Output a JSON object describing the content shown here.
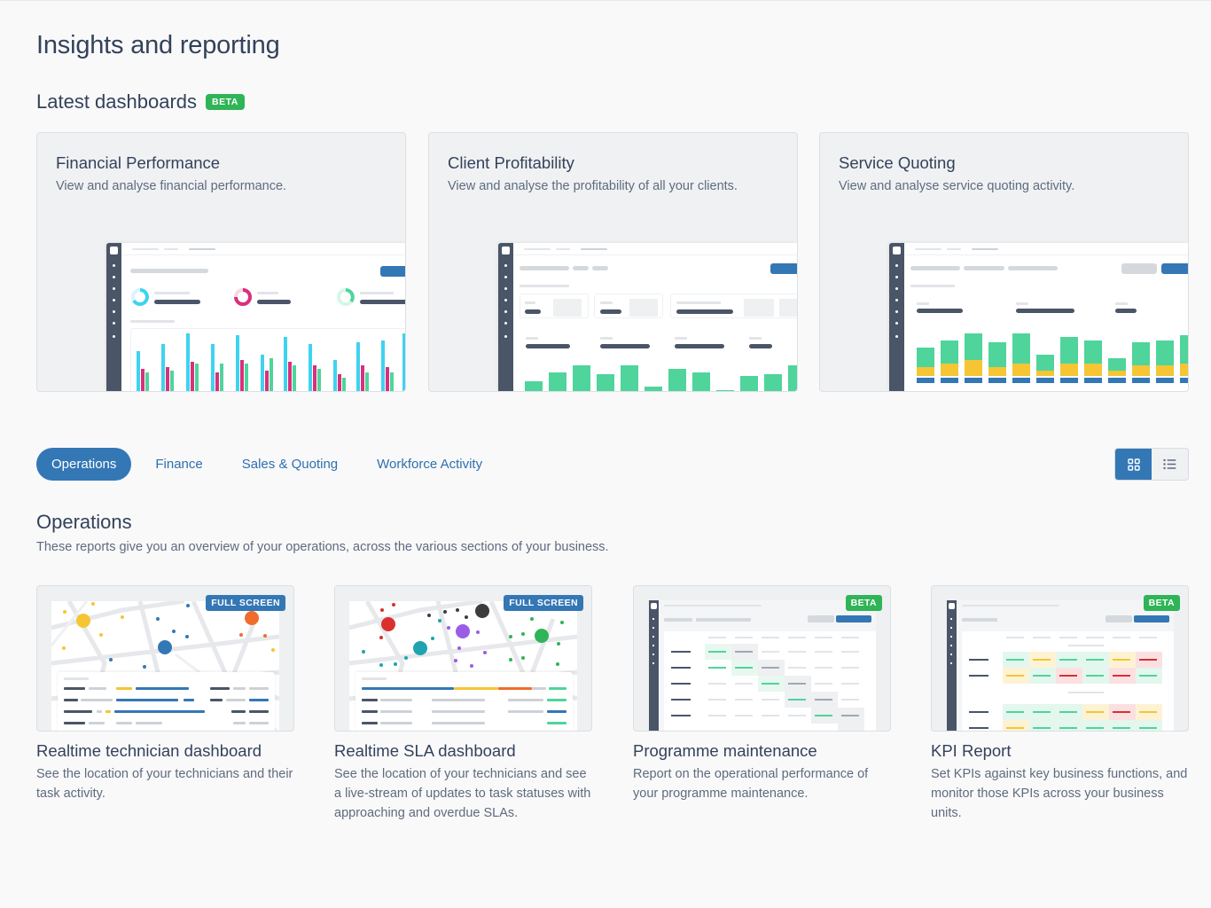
{
  "page": {
    "title": "Insights and reporting"
  },
  "latest": {
    "title": "Latest dashboards",
    "badge": "BETA",
    "cards": [
      {
        "title": "Financial Performance",
        "desc": "View and analyse financial performance."
      },
      {
        "title": "Client Profitability",
        "desc": "View and analyse the profitability of all your clients."
      },
      {
        "title": "Service Quoting",
        "desc": "View and analyse service quoting activity."
      }
    ]
  },
  "tabs": [
    {
      "label": "Operations",
      "active": true
    },
    {
      "label": "Finance",
      "active": false
    },
    {
      "label": "Sales & Quoting",
      "active": false
    },
    {
      "label": "Workforce Activity",
      "active": false
    }
  ],
  "view_toggle": {
    "selected": "grid",
    "grid_icon": "grid-icon",
    "list_icon": "list-icon"
  },
  "operations": {
    "title": "Operations",
    "desc": "These reports give you an overview of your operations, across the various sections of your business.",
    "reports": [
      {
        "title": "Realtime technician dashboard",
        "desc": "See the location of your technicians and their task activity.",
        "badge": "FULL SCREEN"
      },
      {
        "title": "Realtime SLA dashboard",
        "desc": "See the location of your technicians and see a live-stream of updates to task statuses with approaching and overdue SLAs.",
        "badge": "FULL SCREEN"
      },
      {
        "title": "Programme maintenance",
        "desc": "Report on the operational performance of your programme maintenance.",
        "badge": "BETA"
      },
      {
        "title": "KPI Report",
        "desc": "Set KPIs against key business functions, and monitor those KPIs across your business units.",
        "badge": "BETA"
      }
    ]
  },
  "colors": {
    "accent": "#3477b5",
    "beta_green": "#2fb457",
    "chart_green": "#4fd49b",
    "chart_yellow": "#f5c534",
    "chart_blue": "#3477b5",
    "chart_cyan": "#3ed3f0",
    "chart_pink": "#d9307d"
  }
}
